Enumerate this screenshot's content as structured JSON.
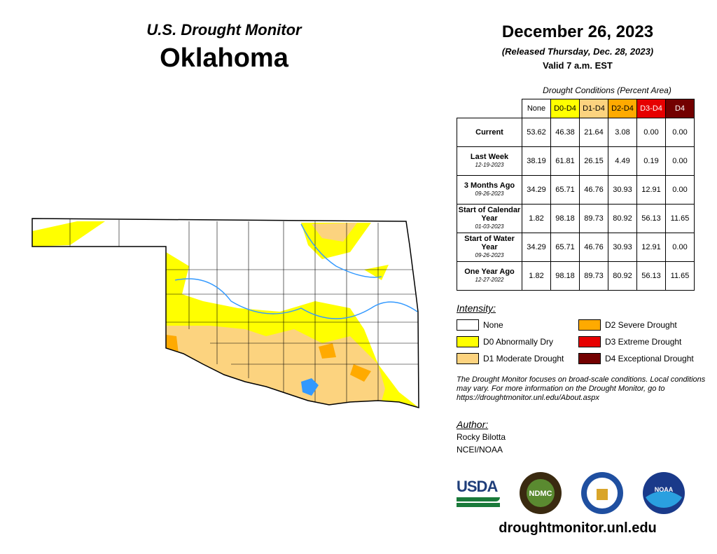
{
  "header": {
    "series_title": "U.S. Drought Monitor",
    "state": "Oklahoma",
    "date": "December 26, 2023",
    "released": "(Released Thursday, Dec. 28, 2023)",
    "valid": "Valid 7 a.m. EST"
  },
  "table": {
    "caption": "Drought Conditions (Percent Area)",
    "columns": [
      "None",
      "D0-D4",
      "D1-D4",
      "D2-D4",
      "D3-D4",
      "D4"
    ],
    "column_colors": [
      "#ffffff",
      "#ffff00",
      "#fcd37f",
      "#ffaa00",
      "#e60000",
      "#730000"
    ],
    "rows": [
      {
        "label": "Current",
        "date": "",
        "values": [
          "53.62",
          "46.38",
          "21.64",
          "3.08",
          "0.00",
          "0.00"
        ]
      },
      {
        "label": "Last Week",
        "date": "12-19-2023",
        "values": [
          "38.19",
          "61.81",
          "26.15",
          "4.49",
          "0.19",
          "0.00"
        ]
      },
      {
        "label": "3 Months Ago",
        "date": "09-26-2023",
        "values": [
          "34.29",
          "65.71",
          "46.76",
          "30.93",
          "12.91",
          "0.00"
        ]
      },
      {
        "label": "Start of Calendar Year",
        "date": "01-03-2023",
        "values": [
          "1.82",
          "98.18",
          "89.73",
          "80.92",
          "56.13",
          "11.65"
        ]
      },
      {
        "label": "Start of Water Year",
        "date": "09-26-2023",
        "values": [
          "34.29",
          "65.71",
          "46.76",
          "30.93",
          "12.91",
          "0.00"
        ]
      },
      {
        "label": "One Year Ago",
        "date": "12-27-2022",
        "values": [
          "1.82",
          "98.18",
          "89.73",
          "80.92",
          "56.13",
          "11.65"
        ]
      }
    ]
  },
  "legend": {
    "title": "Intensity:",
    "items": [
      {
        "label": "None",
        "color": "#ffffff"
      },
      {
        "label": "D0 Abnormally Dry",
        "color": "#ffff00"
      },
      {
        "label": "D1 Moderate Drought",
        "color": "#fcd37f"
      },
      {
        "label": "D2 Severe Drought",
        "color": "#ffaa00"
      },
      {
        "label": "D3 Extreme Drought",
        "color": "#e60000"
      },
      {
        "label": "D4 Exceptional Drought",
        "color": "#730000"
      }
    ]
  },
  "note": "The Drought Monitor focuses on broad-scale conditions. Local conditions may vary. For more information on the Drought Monitor, go to https://droughtmonitor.unl.edu/About.aspx",
  "author": {
    "title": "Author:",
    "name": "Rocky Bilotta",
    "org": "NCEI/NOAA"
  },
  "logos": [
    "USDA",
    "NDMC",
    "DOC",
    "NOAA"
  ],
  "url": "droughtmonitor.unl.edu"
}
